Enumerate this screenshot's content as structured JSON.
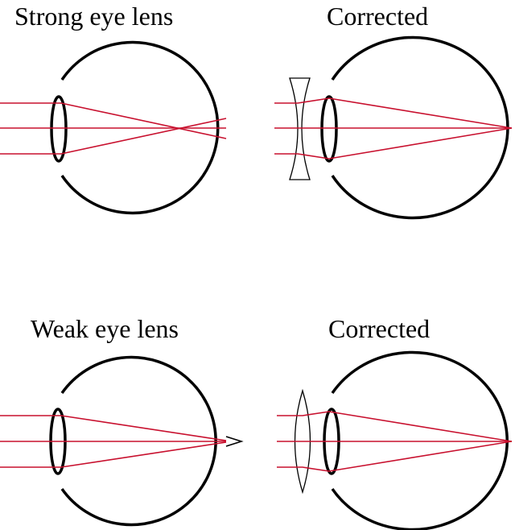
{
  "panels": {
    "myopia": {
      "title": "Strong eye lens"
    },
    "myopia_corrected": {
      "title": "Corrected"
    },
    "hyperopia": {
      "title": "Weak eye lens"
    },
    "hyperopia_corrected": {
      "title": "Corrected"
    }
  },
  "colors": {
    "outline": "#000000",
    "ray": "#c8102e",
    "background": "#ffffff"
  }
}
